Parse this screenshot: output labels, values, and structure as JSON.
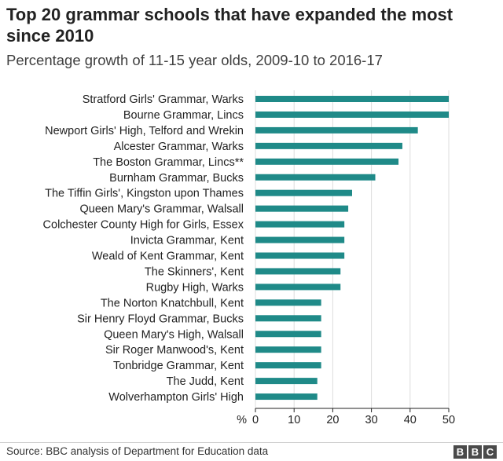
{
  "title": "Top 20 grammar schools that have expanded the most since 2010",
  "subtitle": "Percentage growth of 11-15 year olds, 2009-10 to 2016-17",
  "source": "Source: BBC analysis of Department for Education data",
  "logo": [
    "B",
    "B",
    "C"
  ],
  "colors": {
    "bar": "#1f8a88",
    "axis": "#222222",
    "grid": "#dddddd"
  },
  "chart_data": {
    "type": "bar",
    "orientation": "horizontal",
    "categories": [
      "Stratford Girls' Grammar, Warks",
      "Bourne Grammar, Lincs",
      "Newport Girls' High, Telford and Wrekin",
      "Alcester Grammar, Warks",
      "The Boston Grammar, Lincs**",
      "Burnham Grammar, Bucks",
      "The Tiffin Girls', Kingston upon Thames",
      "Queen Mary's Grammar, Walsall",
      "Colchester County High for Girls, Essex",
      "Invicta Grammar, Kent",
      "Weald of Kent Grammar, Kent",
      "The Skinners', Kent",
      "Rugby High, Warks",
      "The Norton Knatchbull, Kent",
      "Sir Henry Floyd Grammar, Bucks",
      "Queen Mary's High, Walsall",
      "Sir Roger Manwood's, Kent",
      "Tonbridge Grammar, Kent",
      "The Judd, Kent",
      "Wolverhampton Girls' High"
    ],
    "values": [
      50,
      50,
      42,
      38,
      37,
      31,
      25,
      24,
      23,
      23,
      23,
      22,
      22,
      17,
      17,
      17,
      17,
      17,
      16,
      16
    ],
    "xlim": [
      0,
      50
    ],
    "xticks": [
      "0",
      "10",
      "20",
      "30",
      "40",
      "50"
    ],
    "xunit": "%",
    "grid": true
  }
}
